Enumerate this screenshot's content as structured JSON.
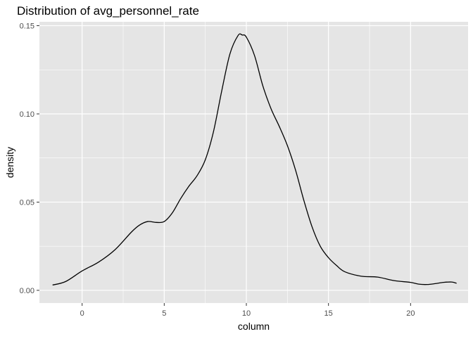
{
  "chart_data": {
    "type": "line",
    "title": "Distribution of avg_personnel_rate",
    "xlabel": "column",
    "ylabel": "density",
    "xlim": [
      -2.6,
      23.5
    ],
    "ylim": [
      -0.0072,
      0.1522
    ],
    "x_ticks": [
      0,
      5,
      10,
      15,
      20
    ],
    "x_tick_labels": [
      "0",
      "5",
      "10",
      "15",
      "20"
    ],
    "y_ticks": [
      0.0,
      0.05,
      0.1,
      0.15
    ],
    "y_tick_labels": [
      "0.00",
      "0.05",
      "0.10",
      "0.15"
    ],
    "grid": true,
    "legend": "none",
    "colors": {
      "panel": "#e5e5e5",
      "grid": "#ffffff",
      "line": "#000000",
      "tick": "#333333"
    },
    "series": [
      {
        "x": [
          -1.8,
          -1.0,
          0.0,
          1.0,
          2.0,
          3.0,
          3.5,
          4.0,
          4.5,
          5.0,
          5.5,
          6.0,
          6.5,
          7.0,
          7.5,
          8.0,
          8.5,
          9.0,
          9.5,
          9.75,
          10.0,
          10.5,
          11.0,
          11.5,
          12.0,
          12.5,
          13.0,
          13.5,
          14.0,
          14.5,
          15.0,
          15.5,
          16.0,
          17.0,
          18.0,
          19.0,
          20.0,
          20.5,
          21.0,
          21.5,
          22.0,
          22.5,
          22.8
        ],
        "y": [
          0.003,
          0.005,
          0.011,
          0.016,
          0.023,
          0.033,
          0.037,
          0.039,
          0.0385,
          0.039,
          0.044,
          0.052,
          0.059,
          0.065,
          0.074,
          0.09,
          0.113,
          0.134,
          0.1445,
          0.1447,
          0.1435,
          0.133,
          0.116,
          0.103,
          0.093,
          0.082,
          0.068,
          0.051,
          0.036,
          0.025,
          0.0185,
          0.014,
          0.0105,
          0.008,
          0.0075,
          0.0055,
          0.0045,
          0.0035,
          0.0033,
          0.0038,
          0.0045,
          0.0047,
          0.004
        ]
      }
    ]
  }
}
